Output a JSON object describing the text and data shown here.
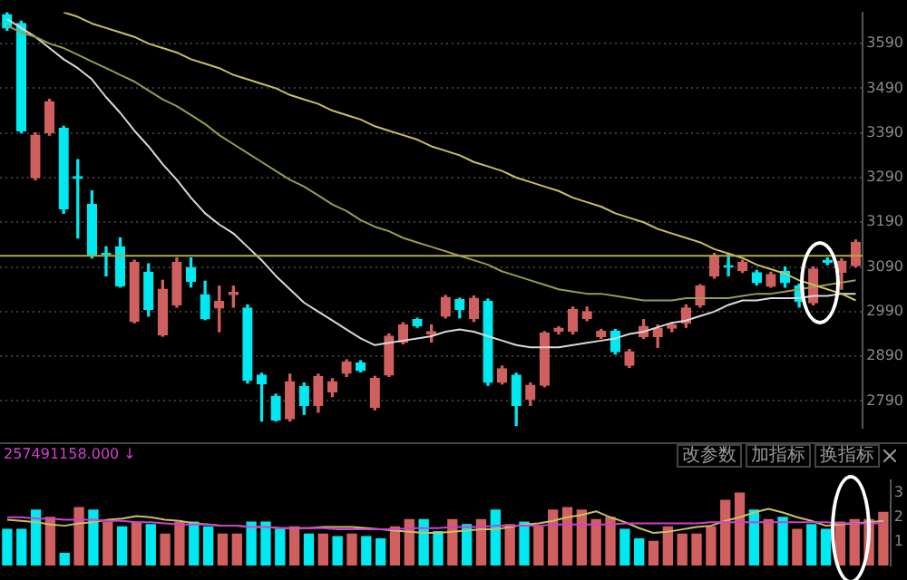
{
  "chart_data": [
    {
      "type": "candlestick",
      "categories": [
        null,
        null,
        null,
        null,
        null,
        null,
        null,
        null,
        null,
        null,
        null,
        null,
        null,
        null,
        null,
        null,
        null,
        null,
        null,
        null,
        null,
        null,
        null,
        null,
        null,
        null,
        null,
        null,
        null,
        null,
        null,
        null,
        null,
        null,
        null,
        null,
        null,
        null,
        null,
        null,
        null,
        null,
        null,
        null,
        null,
        null,
        null,
        null,
        null,
        null,
        null,
        null,
        null,
        null,
        null,
        null,
        null,
        null,
        null,
        null,
        null
      ],
      "ohlc": [
        [
          3655,
          3660,
          3620,
          3625
        ],
        [
          3635,
          3640,
          3390,
          3395
        ],
        [
          3290,
          3390,
          3285,
          3385
        ],
        [
          3390,
          3465,
          3385,
          3460
        ],
        [
          3400,
          3405,
          3210,
          3220
        ],
        [
          3292,
          3330,
          3155,
          3288
        ],
        [
          3230,
          3260,
          3110,
          3115
        ],
        [
          3120,
          3135,
          3070,
          3118
        ],
        [
          3135,
          3155,
          3045,
          3048
        ],
        [
          2968,
          3105,
          2965,
          3100
        ],
        [
          3078,
          3097,
          2980,
          2995
        ],
        [
          2938,
          3060,
          2935,
          3040
        ],
        [
          3005,
          3110,
          3000,
          3100
        ],
        [
          3089,
          3110,
          3045,
          3058
        ],
        [
          3028,
          3058,
          2972,
          2975
        ],
        [
          2998,
          3047,
          2945,
          3013
        ],
        [
          3028,
          3047,
          3000,
          3033
        ],
        [
          2998,
          3005,
          2830,
          2836
        ],
        [
          2848,
          2852,
          2745,
          2828
        ],
        [
          2800,
          2805,
          2745,
          2747
        ],
        [
          2750,
          2850,
          2745,
          2833
        ],
        [
          2822,
          2830,
          2760,
          2780
        ],
        [
          2780,
          2850,
          2765,
          2845
        ],
        [
          2810,
          2840,
          2800,
          2833
        ],
        [
          2852,
          2882,
          2845,
          2877
        ],
        [
          2875,
          2880,
          2855,
          2858
        ],
        [
          2776,
          2845,
          2770,
          2840
        ],
        [
          2848,
          2940,
          2845,
          2935
        ],
        [
          2922,
          2965,
          2918,
          2960
        ],
        [
          2972,
          2975,
          2955,
          2958
        ],
        [
          2940,
          2960,
          2922,
          2945
        ],
        [
          2980,
          3026,
          2976,
          3022
        ],
        [
          3017,
          3020,
          2976,
          2995
        ],
        [
          2975,
          3025,
          2968,
          3020
        ],
        [
          3013,
          3018,
          2825,
          2832
        ],
        [
          2832,
          2868,
          2828,
          2862
        ],
        [
          2848,
          2852,
          2735,
          2780
        ],
        [
          2794,
          2830,
          2780,
          2825
        ],
        [
          2825,
          2945,
          2822,
          2942
        ],
        [
          2946,
          2956,
          2940,
          2953
        ],
        [
          2946,
          3000,
          2940,
          2995
        ],
        [
          2975,
          3000,
          2970,
          2990
        ],
        [
          2934,
          2950,
          2930,
          2946
        ],
        [
          2946,
          2950,
          2895,
          2900
        ],
        [
          2870,
          2905,
          2865,
          2900
        ],
        [
          2934,
          2972,
          2930,
          2957
        ],
        [
          2934,
          2960,
          2910,
          2953
        ],
        [
          2953,
          2965,
          2945,
          2960
        ],
        [
          2964,
          3005,
          2955,
          2998
        ],
        [
          3005,
          3050,
          3000,
          3047
        ],
        [
          3070,
          3120,
          3065,
          3115
        ],
        [
          3093,
          3120,
          3070,
          3090
        ],
        [
          3082,
          3105,
          3078,
          3100
        ],
        [
          3077,
          3082,
          3050,
          3055
        ],
        [
          3047,
          3078,
          3045,
          3073
        ],
        [
          3080,
          3090,
          3045,
          3055
        ],
        [
          3047,
          3052,
          3000,
          3013
        ],
        [
          3010,
          3090,
          3005,
          3085
        ],
        [
          3105,
          3110,
          3095,
          3100
        ],
        [
          3078,
          3108,
          3040,
          3103
        ],
        [
          3093,
          3150,
          3090,
          3145
        ]
      ],
      "colors": [
        "#00e8f0",
        "#00e8f0",
        "#d06060",
        "#d06060",
        "#00e8f0",
        "#00e8f0",
        "#00e8f0",
        "#00e8f0",
        "#00e8f0",
        "#d06060",
        "#00e8f0",
        "#d06060",
        "#d06060",
        "#00e8f0",
        "#00e8f0",
        "#d06060",
        "#d06060",
        "#00e8f0",
        "#00e8f0",
        "#00e8f0",
        "#d06060",
        "#00e8f0",
        "#d06060",
        "#d06060",
        "#d06060",
        "#00e8f0",
        "#d06060",
        "#d06060",
        "#d06060",
        "#00e8f0",
        "#d06060",
        "#d06060",
        "#00e8f0",
        "#d06060",
        "#00e8f0",
        "#d06060",
        "#00e8f0",
        "#d06060",
        "#d06060",
        "#d06060",
        "#d06060",
        "#d06060",
        "#d06060",
        "#00e8f0",
        "#d06060",
        "#d06060",
        "#d06060",
        "#d06060",
        "#d06060",
        "#d06060",
        "#d06060",
        "#00e8f0",
        "#d06060",
        "#00e8f0",
        "#d06060",
        "#00e8f0",
        "#00e8f0",
        "#d06060",
        "#00e8f0",
        "#d06060",
        "#d06060"
      ],
      "series": [
        {
          "type": "line",
          "color": "#c8c060",
          "values": [
            null,
            null,
            null,
            null,
            3660,
            3650,
            3635,
            3625,
            3615,
            3605,
            3590,
            3580,
            3570,
            3555,
            3545,
            3535,
            3520,
            3510,
            3500,
            3490,
            3475,
            3465,
            3455,
            3440,
            3430,
            3420,
            3405,
            3395,
            3385,
            3375,
            3360,
            3350,
            3340,
            3325,
            3315,
            3305,
            3290,
            3280,
            3270,
            3260,
            3245,
            3235,
            3225,
            3210,
            3200,
            3190,
            3175,
            3165,
            3155,
            3145,
            3130,
            3120,
            3110,
            3095,
            3085,
            3075,
            3060,
            3050,
            3040,
            3030,
            3015
          ]
        },
        {
          "type": "line",
          "color": "#9a9a50",
          "values": [
            3630,
            3615,
            3605,
            3590,
            3580,
            3565,
            3550,
            3535,
            3520,
            3505,
            3485,
            3465,
            3450,
            3430,
            3410,
            3385,
            3365,
            3345,
            3325,
            3305,
            3285,
            3270,
            3250,
            3230,
            3215,
            3195,
            3180,
            3170,
            3155,
            3145,
            3135,
            3125,
            3115,
            3105,
            3095,
            3080,
            3070,
            3060,
            3050,
            3040,
            3035,
            3030,
            3030,
            3025,
            3020,
            3015,
            3015,
            3015,
            3020,
            3020,
            3020,
            3020,
            3025,
            3030,
            3030,
            3035,
            3040,
            3045,
            3050,
            3055,
            3060
          ]
        },
        {
          "type": "line",
          "color": "#d8d8d8",
          "values": [
            3645,
            3625,
            3605,
            3580,
            3555,
            3535,
            3510,
            3470,
            3435,
            3395,
            3360,
            3320,
            3285,
            3245,
            3210,
            3185,
            3165,
            3135,
            3105,
            3070,
            3040,
            3010,
            2990,
            2970,
            2950,
            2930,
            2915,
            2920,
            2925,
            2930,
            2935,
            2945,
            2950,
            2945,
            2935,
            2925,
            2915,
            2910,
            2910,
            2910,
            2915,
            2920,
            2925,
            2930,
            2940,
            2945,
            2955,
            2965,
            2970,
            2980,
            2990,
            3005,
            3015,
            3015,
            3020,
            3020,
            3020,
            3025,
            3025,
            3030,
            3030
          ]
        }
      ],
      "ref_lines": [
        {
          "axis": "y",
          "value": 3115,
          "color": "#b0a848"
        }
      ],
      "ylim": [
        2730,
        3660
      ],
      "yticks": [
        2790,
        2890,
        2990,
        3090,
        3190,
        3290,
        3390,
        3490,
        3590
      ],
      "tick_labels": "y",
      "grid": "y",
      "legend": false
    },
    {
      "type": "bar",
      "categories": [
        null,
        null,
        null,
        null,
        null,
        null,
        null,
        null,
        null,
        null,
        null,
        null,
        null,
        null,
        null,
        null,
        null,
        null,
        null,
        null,
        null,
        null,
        null,
        null,
        null,
        null,
        null,
        null,
        null,
        null,
        null,
        null,
        null,
        null,
        null,
        null,
        null,
        null,
        null,
        null,
        null,
        null,
        null,
        null,
        null,
        null,
        null,
        null,
        null,
        null,
        null,
        null,
        null,
        null,
        null,
        null,
        null,
        null,
        null,
        null,
        null,
        null
      ],
      "values": [
        1.5,
        1.5,
        2.3,
        2.0,
        0.5,
        2.4,
        2.3,
        1.8,
        1.6,
        1.8,
        1.7,
        1.3,
        1.8,
        1.8,
        1.6,
        1.3,
        1.3,
        1.8,
        1.8,
        1.5,
        1.6,
        1.3,
        1.3,
        1.2,
        1.3,
        1.2,
        1.1,
        1.6,
        1.9,
        1.9,
        1.4,
        1.9,
        1.7,
        1.9,
        2.3,
        1.7,
        1.8,
        1.6,
        2.3,
        2.4,
        2.3,
        1.9,
        2.0,
        1.5,
        1.1,
        1.0,
        1.6,
        1.3,
        1.3,
        1.6,
        2.7,
        3.0,
        2.3,
        1.9,
        2.0,
        1.5,
        1.7,
        1.5,
        1.8,
        1.9,
        1.9,
        2.2
      ],
      "colors": [
        "#00e8f0",
        "#00e8f0",
        "#00e8f0",
        "#d06060",
        "#00e8f0",
        "#d06060",
        "#00e8f0",
        "#d06060",
        "#00e8f0",
        "#d06060",
        "#00e8f0",
        "#d06060",
        "#d06060",
        "#00e8f0",
        "#00e8f0",
        "#d06060",
        "#d06060",
        "#00e8f0",
        "#00e8f0",
        "#00e8f0",
        "#d06060",
        "#00e8f0",
        "#d06060",
        "#00e8f0",
        "#d06060",
        "#00e8f0",
        "#00e8f0",
        "#d06060",
        "#d06060",
        "#00e8f0",
        "#00e8f0",
        "#d06060",
        "#00e8f0",
        "#d06060",
        "#00e8f0",
        "#d06060",
        "#00e8f0",
        "#d06060",
        "#d06060",
        "#d06060",
        "#d06060",
        "#d06060",
        "#d06060",
        "#00e8f0",
        "#00e8f0",
        "#d06060",
        "#d06060",
        "#d06060",
        "#d06060",
        "#d06060",
        "#d06060",
        "#d06060",
        "#00e8f0",
        "#d06060",
        "#00e8f0",
        "#d06060",
        "#00e8f0",
        "#00e8f0",
        "#d06060",
        "#d06060",
        "#d06060",
        "#d06060"
      ],
      "series": [
        {
          "type": "line",
          "color": "#d040d0",
          "values": [
            2.0,
            2.0,
            1.95,
            1.95,
            1.9,
            1.9,
            1.9,
            1.85,
            1.85,
            1.8,
            1.8,
            1.75,
            1.7,
            1.7,
            1.7,
            1.65,
            1.65,
            1.6,
            1.6,
            1.55,
            1.55,
            1.55,
            1.55,
            1.5,
            1.5,
            1.5,
            1.5,
            1.5,
            1.55,
            1.55,
            1.55,
            1.6,
            1.6,
            1.6,
            1.65,
            1.65,
            1.65,
            1.65,
            1.7,
            1.7,
            1.7,
            1.7,
            1.7,
            1.75,
            1.75,
            1.75,
            1.75,
            1.75,
            1.75,
            1.8,
            1.8,
            1.8,
            1.8,
            1.8,
            1.8,
            1.8,
            1.8,
            1.8,
            1.75,
            1.75,
            1.75,
            1.75
          ]
        },
        {
          "type": "line",
          "color": "#c8c060",
          "values": [
            1.9,
            1.85,
            1.8,
            1.7,
            1.65,
            1.75,
            1.8,
            1.9,
            1.95,
            2.05,
            2.0,
            1.9,
            1.85,
            1.75,
            1.7,
            1.65,
            1.65,
            1.6,
            1.6,
            1.55,
            1.55,
            1.55,
            1.6,
            1.6,
            1.6,
            1.55,
            1.5,
            1.45,
            1.4,
            1.35,
            1.35,
            1.4,
            1.45,
            1.5,
            1.5,
            1.6,
            1.7,
            1.75,
            1.85,
            2.0,
            2.1,
            2.25,
            2.0,
            1.8,
            1.55,
            1.35,
            1.4,
            1.5,
            1.6,
            1.65,
            1.85,
            2.0,
            2.2,
            2.35,
            2.2,
            2.0,
            1.85,
            1.65,
            1.7,
            1.75,
            1.8,
            1.85
          ]
        }
      ],
      "annotations": [
        "257491158.000 ↓",
        "改参数",
        "加指标",
        "换指标"
      ],
      "ylim": [
        0,
        3.55
      ],
      "yticks": [
        1,
        2,
        3
      ],
      "tick_labels": "y",
      "legend": false
    }
  ]
}
